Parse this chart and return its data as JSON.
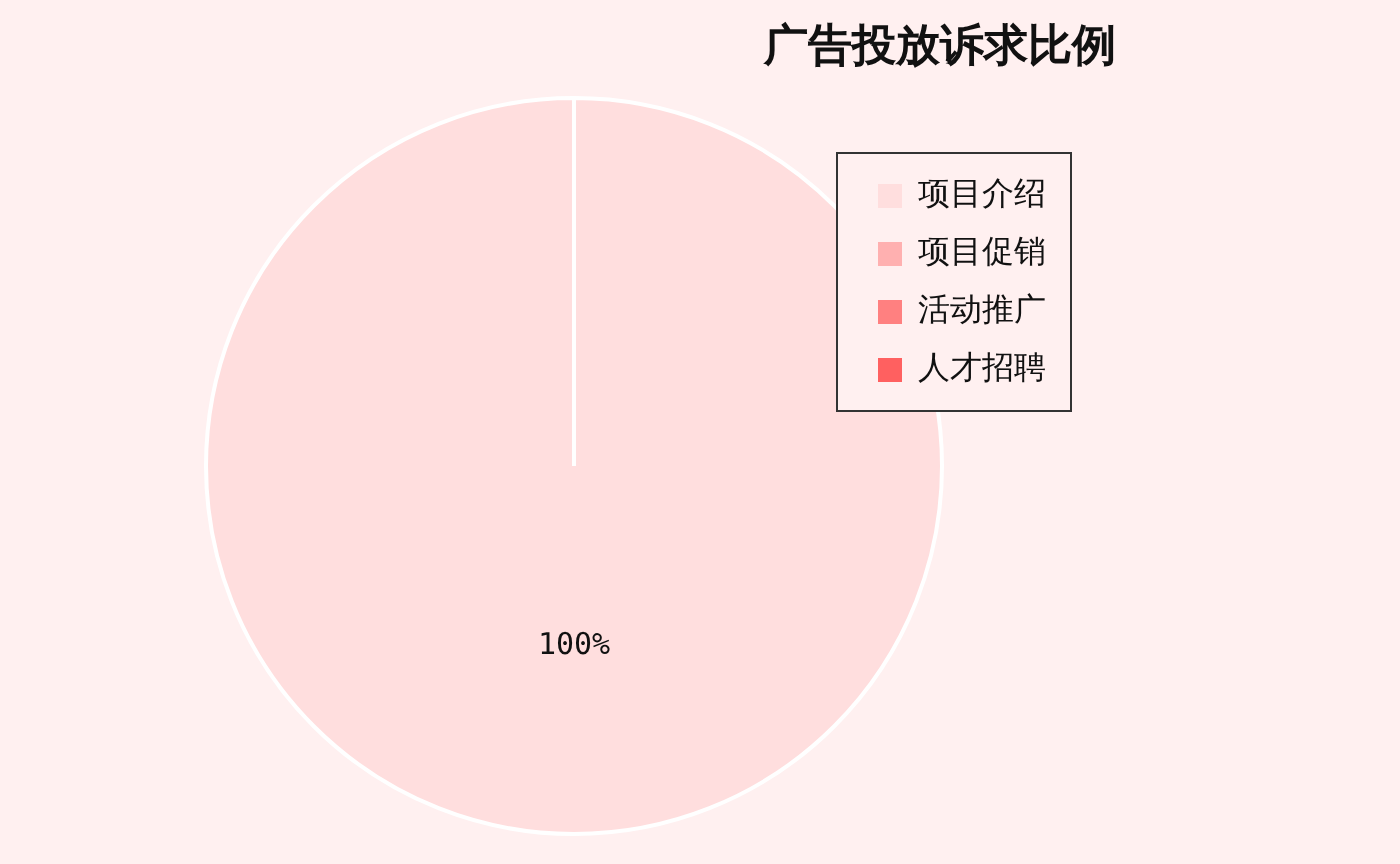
{
  "chart_data": {
    "type": "pie",
    "title": "广告投放诉求比例",
    "categories": [
      "项目介绍",
      "项目促销",
      "活动推广",
      "人才招聘"
    ],
    "values": [
      100,
      0,
      0,
      0
    ],
    "colors": [
      "#ffdede",
      "#ffb0b0",
      "#ff8080",
      "#ff6060"
    ],
    "value_labels": [
      "100%",
      null,
      null,
      null
    ],
    "legend": "top right"
  }
}
